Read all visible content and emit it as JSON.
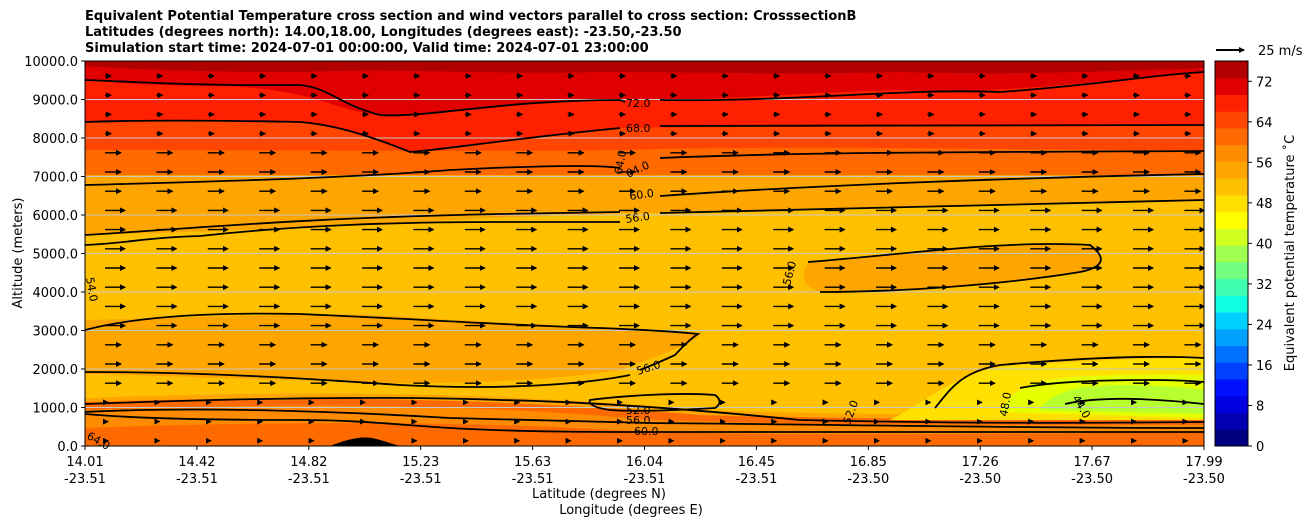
{
  "title": {
    "line1": "Equivalent Potential Temperature cross section and wind vectors parallel to cross section: CrosssectionB",
    "line2": "Latitudes (degrees north): 14.00,18.00, Longitudes (degrees east): -23.50,-23.50",
    "line3": "Simulation start time: 2024-07-01 00:00:00, Valid time: 2024-07-01 23:00:00"
  },
  "chart_data": {
    "type": "contour-cross-section",
    "ylabel": "Altitude (meters)",
    "xlabel_lat": "Latitude (degrees N)",
    "xlabel_lon": "Longitude (degrees E)",
    "ylim": [
      0,
      10000
    ],
    "y_ticks": [
      "0.0",
      "1000.0",
      "2000.0",
      "3000.0",
      "4000.0",
      "5000.0",
      "6000.0",
      "7000.0",
      "8000.0",
      "9000.0",
      "10000.0"
    ],
    "x_ticks": [
      {
        "lat": "14.01",
        "lon": "-23.51"
      },
      {
        "lat": "14.42",
        "lon": "-23.51"
      },
      {
        "lat": "14.82",
        "lon": "-23.51"
      },
      {
        "lat": "15.23",
        "lon": "-23.51"
      },
      {
        "lat": "15.63",
        "lon": "-23.51"
      },
      {
        "lat": "16.04",
        "lon": "-23.51"
      },
      {
        "lat": "16.45",
        "lon": "-23.51"
      },
      {
        "lat": "16.85",
        "lon": "-23.50"
      },
      {
        "lat": "17.26",
        "lon": "-23.50"
      },
      {
        "lat": "17.67",
        "lon": "-23.50"
      },
      {
        "lat": "17.99",
        "lon": "-23.50"
      }
    ],
    "colorbar": {
      "label": "Equivalent potential temperature ˚C",
      "min": 0,
      "max": 76,
      "ticks": [
        "0",
        "8",
        "16",
        "24",
        "32",
        "40",
        "48",
        "56",
        "64",
        "72"
      ]
    },
    "quiver_key": "25 m/s",
    "contour_labels": [
      "72.0",
      "68.0",
      "64.0",
      "64.0",
      "60.0",
      "56.0",
      "56.0",
      "56.0",
      "52.0",
      "52.0",
      "48.0",
      "44.0",
      "56.0",
      "60.0",
      "54.0",
      "64.0"
    ]
  }
}
